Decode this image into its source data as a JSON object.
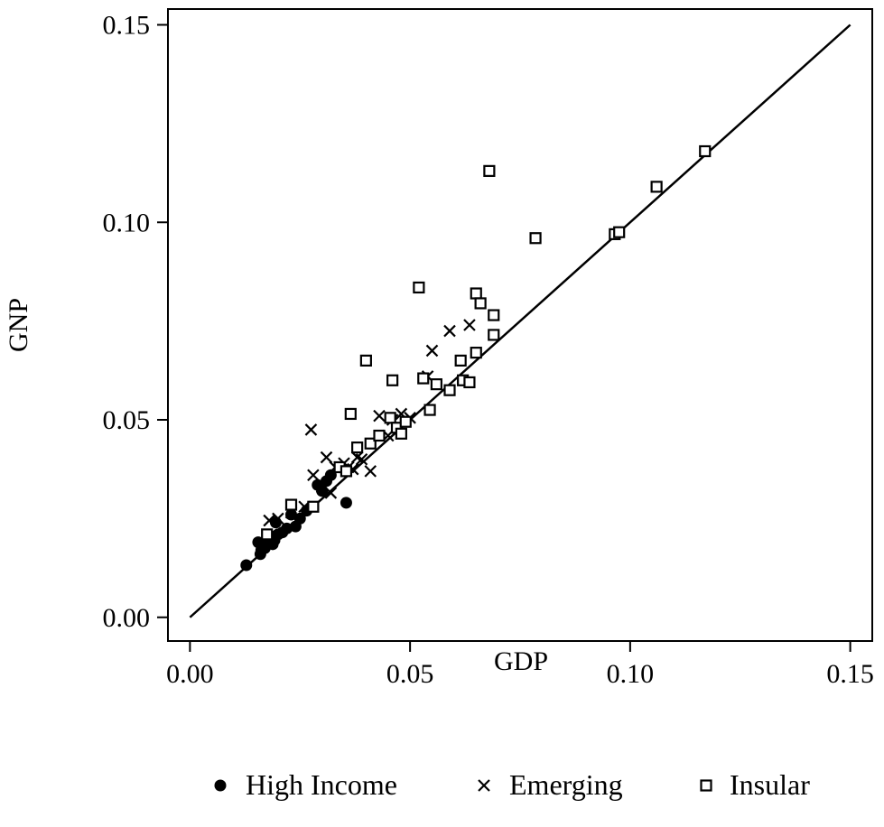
{
  "chart_data": {
    "type": "scatter",
    "title": "",
    "xlabel": "GDP",
    "ylabel": "GNP",
    "xlim": [
      -0.005,
      0.155
    ],
    "ylim": [
      -0.006,
      0.154
    ],
    "xticks": [
      0.0,
      0.05,
      0.1,
      0.15
    ],
    "xtick_labels": [
      "0.00",
      "0.05",
      "0.10",
      "0.15"
    ],
    "yticks": [
      0.0,
      0.05,
      0.1,
      0.15
    ],
    "ytick_labels": [
      "0.00",
      "0.05",
      "0.10",
      "0.15"
    ],
    "grid": false,
    "legend_position": "bottom",
    "reference_line": {
      "x": [
        0.0,
        0.15
      ],
      "y": [
        0.0,
        0.15
      ]
    },
    "series": [
      {
        "name": "High Income",
        "marker": "filled-circle",
        "x": [
          0.0128,
          0.0155,
          0.016,
          0.0162,
          0.017,
          0.0175,
          0.018,
          0.0185,
          0.0188,
          0.0192,
          0.0195,
          0.02,
          0.021,
          0.022,
          0.023,
          0.024,
          0.025,
          0.0265,
          0.029,
          0.03,
          0.031,
          0.032,
          0.0355
        ],
        "y": [
          0.0132,
          0.019,
          0.016,
          0.017,
          0.0175,
          0.02,
          0.019,
          0.0205,
          0.0185,
          0.0195,
          0.024,
          0.021,
          0.0215,
          0.0225,
          0.026,
          0.023,
          0.025,
          0.027,
          0.0335,
          0.032,
          0.0345,
          0.036,
          0.029
        ]
      },
      {
        "name": "Emerging",
        "marker": "cross",
        "x": [
          0.018,
          0.02,
          0.023,
          0.026,
          0.0275,
          0.028,
          0.03,
          0.031,
          0.032,
          0.033,
          0.035,
          0.036,
          0.037,
          0.038,
          0.039,
          0.041,
          0.043,
          0.045,
          0.046,
          0.048,
          0.05,
          0.054,
          0.055,
          0.059,
          0.0635
        ],
        "y": [
          0.0245,
          0.025,
          0.0265,
          0.028,
          0.0475,
          0.036,
          0.033,
          0.0405,
          0.0315,
          0.038,
          0.039,
          0.038,
          0.0375,
          0.0405,
          0.04,
          0.037,
          0.051,
          0.046,
          0.05,
          0.0515,
          0.0505,
          0.061,
          0.0675,
          0.0725,
          0.074
        ]
      },
      {
        "name": "Insular",
        "marker": "open-square",
        "x": [
          0.0175,
          0.023,
          0.028,
          0.034,
          0.0355,
          0.0365,
          0.038,
          0.04,
          0.041,
          0.043,
          0.0455,
          0.046,
          0.047,
          0.048,
          0.049,
          0.052,
          0.053,
          0.0545,
          0.056,
          0.059,
          0.0615,
          0.062,
          0.0635,
          0.065,
          0.065,
          0.066,
          0.068,
          0.069,
          0.069,
          0.0785,
          0.0965,
          0.0975,
          0.106,
          0.117
        ],
        "y": [
          0.021,
          0.0285,
          0.028,
          0.038,
          0.037,
          0.0515,
          0.043,
          0.065,
          0.044,
          0.046,
          0.0505,
          0.06,
          0.048,
          0.0465,
          0.0495,
          0.0835,
          0.0605,
          0.0525,
          0.059,
          0.0575,
          0.065,
          0.06,
          0.0595,
          0.082,
          0.067,
          0.0795,
          0.113,
          0.0765,
          0.0715,
          0.096,
          0.097,
          0.0975,
          0.109,
          0.118
        ]
      }
    ]
  }
}
